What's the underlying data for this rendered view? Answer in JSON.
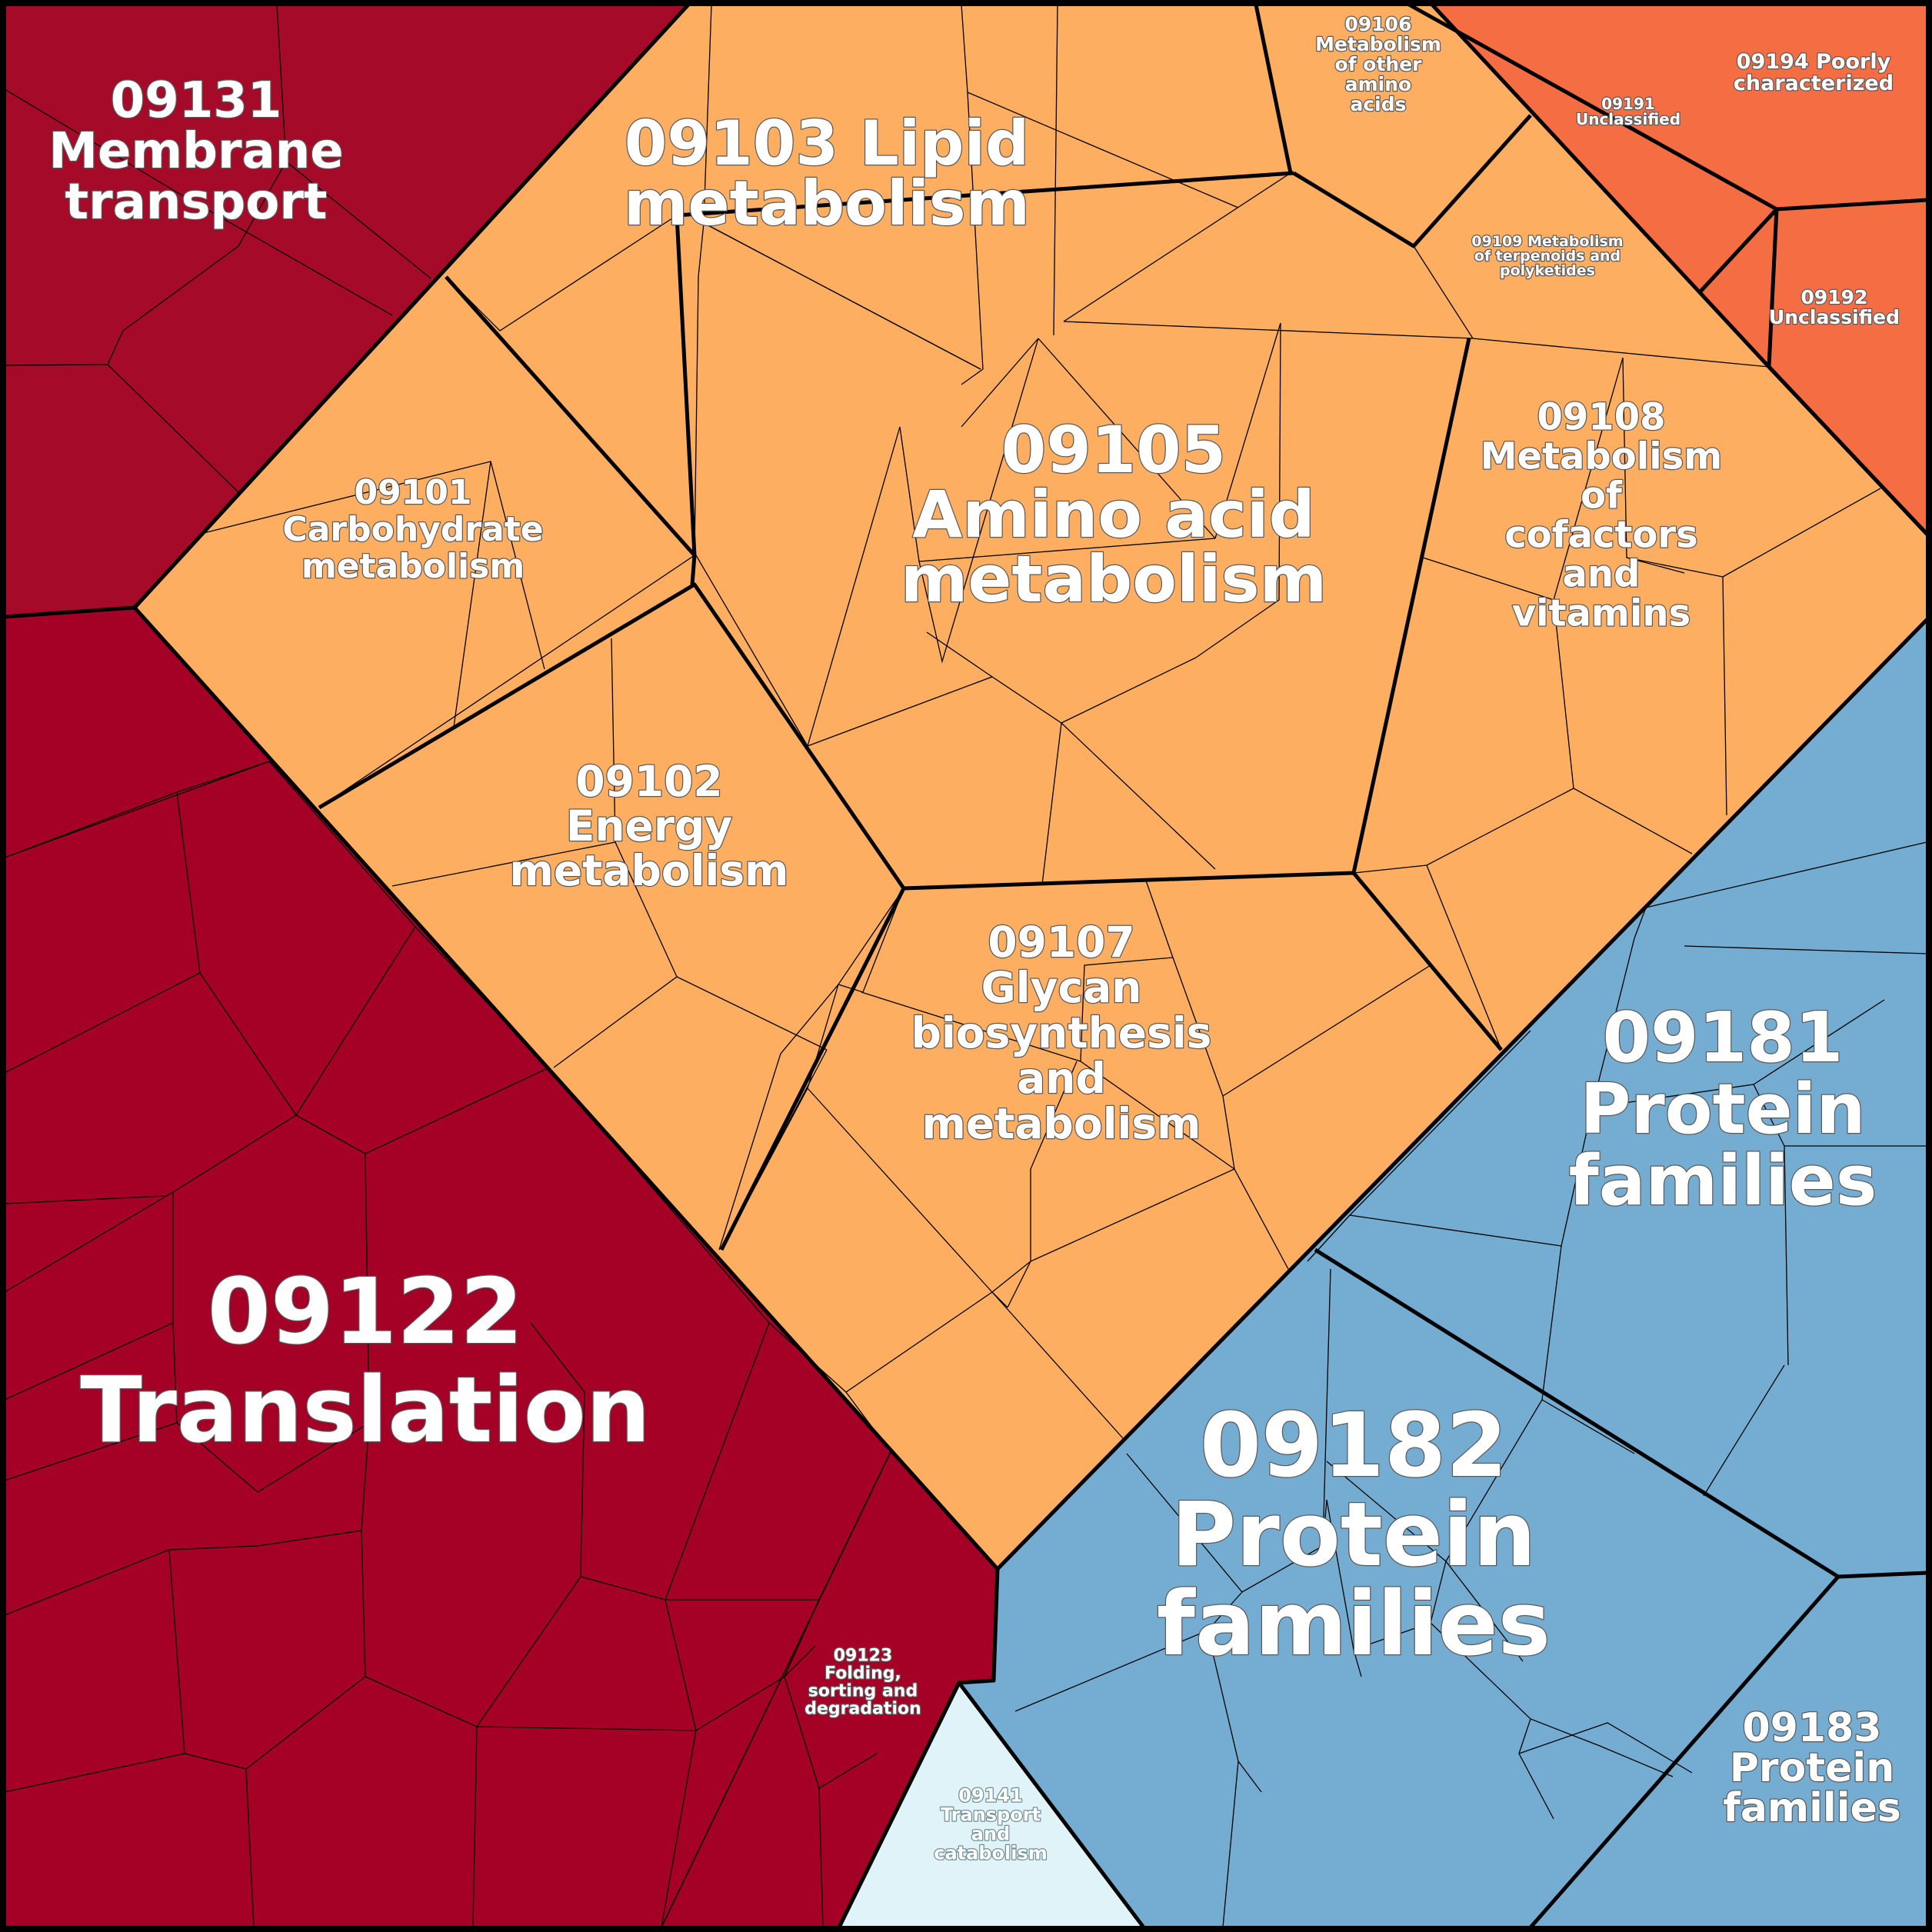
{
  "title": "",
  "colors": {
    "translation": "#a50026",
    "membrane": "#a50a28",
    "metabolism": "#fdae61",
    "unclassified": "#f46d43",
    "protein_families": "#74add1",
    "transport": "#e0f3f8",
    "border": "#000000",
    "label": "#ffffff"
  },
  "regions": [
    {
      "id": "09131",
      "label_lines": [
        "09131",
        "Membrane",
        "transport"
      ]
    },
    {
      "id": "09122",
      "label_lines": [
        "09122",
        "Translation"
      ]
    },
    {
      "id": "09123",
      "label_lines": [
        "09123",
        "Folding,",
        "sorting and",
        "degradation"
      ]
    },
    {
      "id": "09141",
      "label_lines": [
        "09141",
        "Transport",
        "and",
        "catabolism"
      ]
    },
    {
      "id": "09103",
      "label_lines": [
        "09103 Lipid",
        "metabolism"
      ]
    },
    {
      "id": "09106",
      "label_lines": [
        "09106",
        "Metabolism",
        "of other",
        "amino",
        "acids"
      ]
    },
    {
      "id": "09101",
      "label_lines": [
        "09101",
        "Carbohydrate",
        "metabolism"
      ]
    },
    {
      "id": "09105",
      "label_lines": [
        "09105",
        "Amino acid",
        "metabolism"
      ]
    },
    {
      "id": "09109",
      "label_lines": [
        "09109 Metabolism",
        "of terpenoids and",
        "polyketides"
      ]
    },
    {
      "id": "09108",
      "label_lines": [
        "09108",
        "Metabolism",
        "of",
        "cofactors",
        "and",
        "vitamins"
      ]
    },
    {
      "id": "09102",
      "label_lines": [
        "09102",
        "Energy",
        "metabolism"
      ]
    },
    {
      "id": "09107",
      "label_lines": [
        "09107",
        "Glycan",
        "biosynthesis",
        "and",
        "metabolism"
      ]
    },
    {
      "id": "09191",
      "label_lines": [
        "09191",
        "Unclassified"
      ]
    },
    {
      "id": "09194",
      "label_lines": [
        "09194 Poorly",
        "characterized"
      ]
    },
    {
      "id": "09192",
      "label_lines": [
        "09192",
        "Unclassified"
      ]
    },
    {
      "id": "09181",
      "label_lines": [
        "09181",
        "Protein",
        "families"
      ]
    },
    {
      "id": "09182",
      "label_lines": [
        "09182",
        "Protein",
        "families"
      ]
    },
    {
      "id": "09183",
      "label_lines": [
        "09183",
        "Protein",
        "families"
      ]
    }
  ]
}
